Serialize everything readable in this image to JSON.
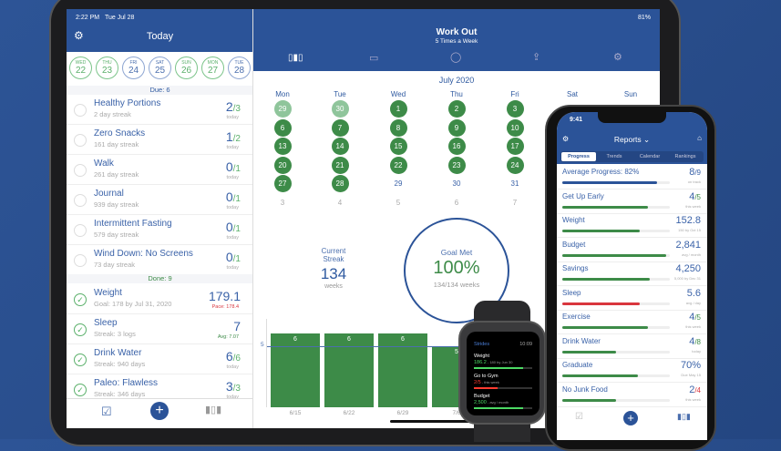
{
  "colors": {
    "accent": "#2b5398",
    "green": "#3d8b48",
    "red": "#d9363e"
  },
  "ipad": {
    "status": {
      "time": "2:22 PM",
      "date": "Tue Jul 28",
      "battery": "81%"
    },
    "today": {
      "title": "Today",
      "icon": "gear-icon",
      "days": [
        {
          "w": "WED",
          "n": "22",
          "done": true
        },
        {
          "w": "THU",
          "n": "23",
          "done": true
        },
        {
          "w": "FRI",
          "n": "24",
          "done": false
        },
        {
          "w": "SAT",
          "n": "25",
          "done": false
        },
        {
          "w": "SUN",
          "n": "26",
          "done": true
        },
        {
          "w": "MON",
          "n": "27",
          "done": true
        },
        {
          "w": "TUE",
          "n": "28",
          "done": false
        }
      ],
      "due_label": "Due: 6",
      "done_label": "Done: 9",
      "due": [
        {
          "t": "Healthy Portions",
          "s": "2 day streak",
          "v": "2",
          "g": "/3",
          "u": "today"
        },
        {
          "t": "Zero Snacks",
          "s": "161 day streak",
          "v": "1",
          "g": "/2",
          "u": "today"
        },
        {
          "t": "Walk",
          "s": "261 day streak",
          "v": "0",
          "g": "/1",
          "u": "today"
        },
        {
          "t": "Journal",
          "s": "939 day streak",
          "v": "0",
          "g": "/1",
          "u": "today"
        },
        {
          "t": "Intermittent Fasting",
          "s": "579 day streak",
          "v": "0",
          "g": "/1",
          "u": "today"
        },
        {
          "t": "Wind Down: No Screens",
          "s": "73 day streak",
          "v": "0",
          "g": "/1",
          "u": "today"
        }
      ],
      "done": [
        {
          "t": "Weight",
          "s": "Goal: 178 by Jul 31, 2020",
          "v": "179.1",
          "g": "",
          "u": "Pace: 178.4",
          "uc": "#d9363e"
        },
        {
          "t": "Sleep",
          "s": "Streak: 3 logs",
          "v": "7",
          "g": "",
          "u": "Avg: 7.07",
          "uc": "#3d8b48"
        },
        {
          "t": "Drink Water",
          "s": "Streak: 940 days",
          "v": "6",
          "g": "/6",
          "u": "today"
        },
        {
          "t": "Paleo: Flawless",
          "s": "Streak: 346 days",
          "v": "3",
          "g": "/3",
          "u": "today"
        }
      ],
      "tabbar": [
        "checkbox-icon",
        "add-icon",
        "chart-icon"
      ]
    },
    "detail": {
      "title": "Work Out",
      "subtitle": "5 Times a Week",
      "toolbar": [
        "chart-icon",
        "book-icon",
        "comment-icon",
        "share-icon",
        "gear-icon"
      ],
      "month": "July 2020",
      "weekdays": [
        "Mon",
        "Tue",
        "Wed",
        "Thu",
        "Fri",
        "Sat",
        "Sun"
      ],
      "weeks": [
        [
          [
            "29",
            "l"
          ],
          [
            "30",
            "l"
          ],
          [
            "1",
            "d"
          ],
          [
            "2",
            "d"
          ],
          [
            "3",
            "d"
          ],
          [
            "",
            ""
          ],
          [
            "",
            ""
          ]
        ],
        [
          [
            "6",
            "d"
          ],
          [
            "7",
            "d"
          ],
          [
            "8",
            "d"
          ],
          [
            "9",
            "d"
          ],
          [
            "10",
            "d"
          ],
          [
            "",
            ""
          ],
          [
            "",
            ""
          ]
        ],
        [
          [
            "13",
            "d"
          ],
          [
            "14",
            "d"
          ],
          [
            "15",
            "d"
          ],
          [
            "16",
            "d"
          ],
          [
            "17",
            "d"
          ],
          [
            "",
            ""
          ],
          [
            "",
            ""
          ]
        ],
        [
          [
            "20",
            "d"
          ],
          [
            "21",
            "d"
          ],
          [
            "22",
            "d"
          ],
          [
            "23",
            "d"
          ],
          [
            "24",
            "d"
          ],
          [
            "",
            ""
          ],
          [
            "",
            ""
          ]
        ],
        [
          [
            "27",
            "d"
          ],
          [
            "28",
            "d"
          ],
          [
            "29",
            "n"
          ],
          [
            "30",
            "n"
          ],
          [
            "31",
            "n"
          ],
          [
            "",
            ""
          ],
          [
            "",
            ""
          ]
        ],
        [
          [
            "3",
            "g"
          ],
          [
            "4",
            "g"
          ],
          [
            "5",
            "g"
          ],
          [
            "6",
            "g"
          ],
          [
            "7",
            "g"
          ],
          [
            "",
            ""
          ],
          [
            "",
            ""
          ]
        ]
      ],
      "streak": {
        "label1": "Current",
        "label2": "Streak",
        "value": "134",
        "unit": "weeks"
      },
      "goal": {
        "label": "Goal Met",
        "value": "100%",
        "detail": "134/134 weeks"
      },
      "chart_data": {
        "type": "bar",
        "categories": [
          "6/15",
          "6/22",
          "6/29",
          "7/6"
        ],
        "values": [
          6,
          6,
          6,
          5
        ],
        "goal_line": 5,
        "goal_label": "5"
      }
    }
  },
  "watch": {
    "app": "Strides",
    "time": "10:09",
    "items": [
      {
        "t": "Weight",
        "v": "186.2",
        "d": " - 180 by Jun 30",
        "c": "#4cd964",
        "p": 0.85
      },
      {
        "t": "Go to Gym",
        "v": "2/5",
        "d": " - this week",
        "c": "#ff3b30",
        "p": 0.4
      },
      {
        "t": "Budget",
        "v": "2,500",
        "d": " - avg / month",
        "c": "#4cd964",
        "p": 0.85
      }
    ]
  },
  "iphone": {
    "time": "9:41",
    "title": "Reports",
    "tabs": [
      "Progress",
      "Trends",
      "Calendar",
      "Rankings"
    ],
    "active_tab": "Progress",
    "rows": [
      {
        "t": "Average Progress: 82%",
        "v": "8",
        "g": "/9",
        "gc": "#3a62a8",
        "u": "on track",
        "p": 0.88,
        "c": "#2b5398"
      },
      {
        "t": "Get Up Early",
        "v": "4",
        "g": "/5",
        "gc": "#3d8b48",
        "u": "this week",
        "p": 0.8,
        "c": "#3d8b48"
      },
      {
        "t": "Weight",
        "v": "152.8",
        "g": "",
        "u": "150 by Oct 15",
        "p": 0.72,
        "c": "#3d8b48"
      },
      {
        "t": "Budget",
        "v": "2,841",
        "g": "",
        "u": "avg / month",
        "p": 0.97,
        "c": "#3d8b48"
      },
      {
        "t": "Savings",
        "v": "4,250",
        "g": "",
        "u": "5,000 by Dec 31",
        "p": 0.81,
        "c": "#3d8b48"
      },
      {
        "t": "Sleep",
        "v": "5.6",
        "g": "",
        "u": "avg / day",
        "p": 0.72,
        "c": "#d9363e"
      },
      {
        "t": "Exercise",
        "v": "4",
        "g": "/5",
        "gc": "#3d8b48",
        "u": "this week",
        "p": 0.8,
        "c": "#3d8b48"
      },
      {
        "t": "Drink Water",
        "v": "4",
        "g": "/8",
        "gc": "#3d8b48",
        "u": "today",
        "p": 0.5,
        "c": "#3d8b48"
      },
      {
        "t": "Graduate",
        "v": "70%",
        "g": "",
        "u": "Due May 15",
        "p": 0.7,
        "c": "#3d8b48"
      },
      {
        "t": "No Junk Food",
        "v": "2",
        "g": "/4",
        "gc": "#d9363e",
        "u": "this week",
        "p": 0.5,
        "c": "#3d8b48"
      }
    ]
  }
}
